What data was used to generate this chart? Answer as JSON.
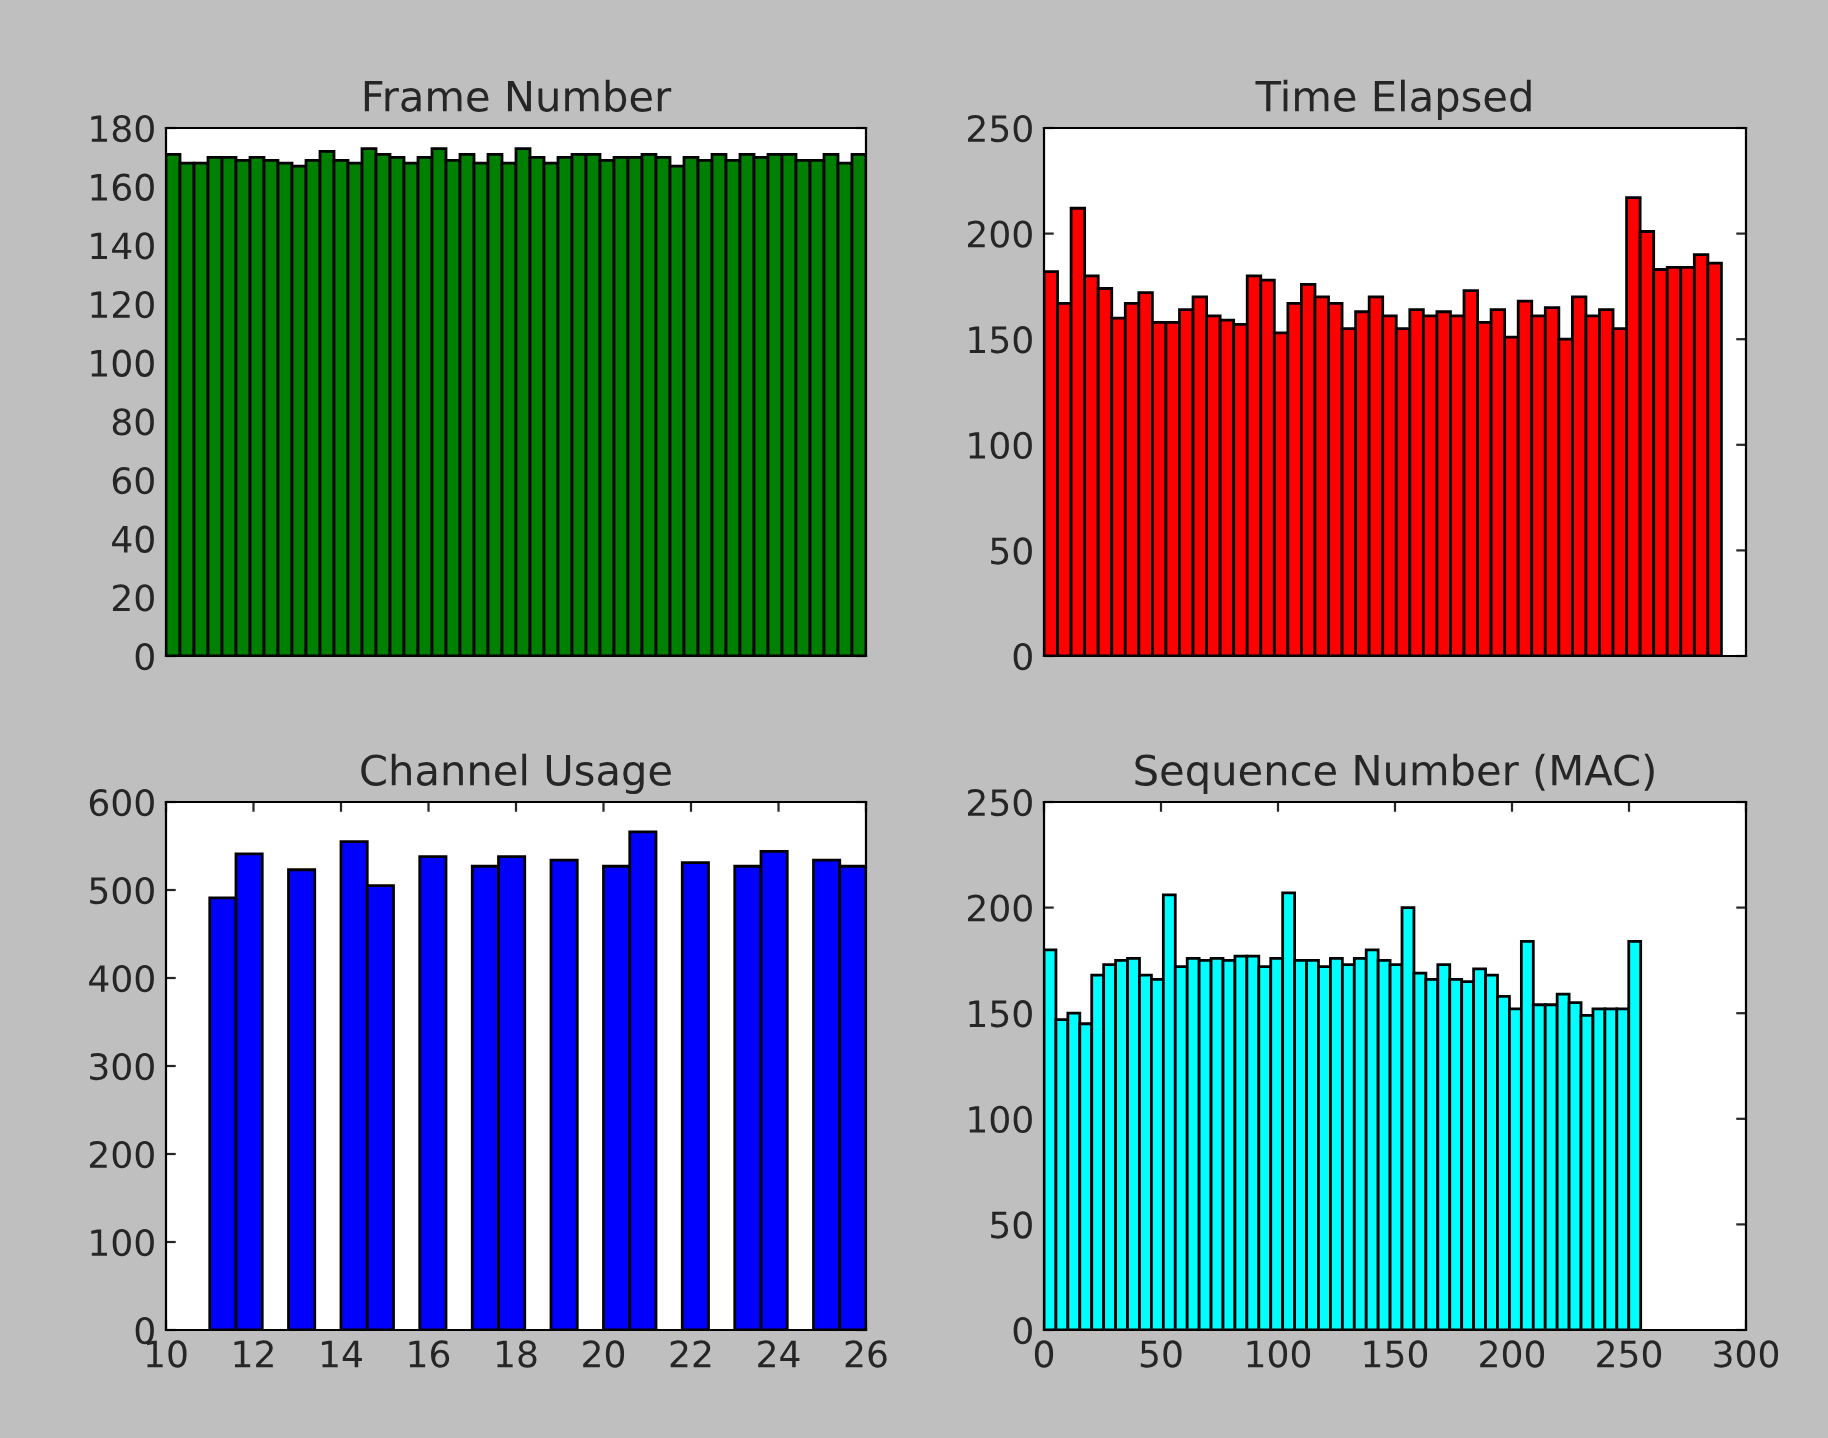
{
  "chart_data": [
    {
      "type": "bar",
      "title": "Frame Number",
      "color": "#008000",
      "tick_labels": "y",
      "categories": [
        null,
        null,
        null,
        null,
        null,
        null,
        null,
        null,
        null,
        null,
        null,
        null,
        null,
        null,
        null,
        null,
        null,
        null,
        null,
        null,
        null,
        null,
        null,
        null,
        null,
        null,
        null,
        null,
        null,
        null,
        null,
        null,
        null,
        null,
        null,
        null,
        null,
        null,
        null,
        null,
        null,
        null,
        null,
        null,
        null,
        null,
        null,
        null,
        null,
        null
      ],
      "values": [
        171,
        168,
        168,
        170,
        170,
        169,
        170,
        169,
        168,
        167,
        169,
        172,
        169,
        168,
        173,
        171,
        170,
        168,
        170,
        173,
        169,
        171,
        168,
        171,
        168,
        173,
        170,
        168,
        170,
        171,
        171,
        169,
        170,
        170,
        171,
        170,
        167,
        170,
        169,
        171,
        169,
        171,
        170,
        171,
        171,
        169,
        169,
        171,
        168,
        171
      ],
      "ylim": [
        0,
        180
      ],
      "yticks": [
        0,
        20,
        40,
        60,
        80,
        100,
        120,
        140,
        160,
        180
      ]
    },
    {
      "type": "histogram",
      "title": "Time Elapsed",
      "color": "#ff0000",
      "tick_labels": "y",
      "bins": [
        0,
        5.79,
        11.58,
        17.37,
        23.16,
        28.95,
        34.74,
        40.53,
        46.32,
        52.11,
        57.9,
        63.69,
        69.48,
        75.27,
        81.06,
        86.85,
        92.64,
        98.43,
        104.22,
        110.01,
        115.8,
        121.59,
        127.38,
        133.17,
        138.96,
        144.75,
        150.54,
        156.33,
        162.12,
        167.91,
        173.7,
        179.49,
        185.28,
        191.07,
        196.86,
        202.65,
        208.44,
        214.23,
        220.02,
        225.81,
        231.6,
        237.39,
        243.18,
        248.97,
        254.76,
        260.55,
        266.34,
        272.13,
        277.92,
        283.71,
        289.5
      ],
      "values": [
        182,
        167,
        212,
        180,
        174,
        160,
        167,
        172,
        158,
        158,
        164,
        170,
        161,
        159,
        157,
        180,
        178,
        153,
        167,
        176,
        170,
        167,
        155,
        163,
        170,
        161,
        155,
        164,
        161,
        163,
        161,
        173,
        158,
        164,
        151,
        168,
        161,
        165,
        150,
        170,
        161,
        164,
        155,
        217,
        201,
        183,
        184,
        184,
        190,
        186
      ],
      "xlim": [
        0,
        300
      ],
      "xticks": [
        0,
        50,
        100,
        150,
        200,
        250,
        300
      ],
      "ylim": [
        0,
        250
      ],
      "yticks": [
        0,
        50,
        100,
        150,
        200,
        250
      ]
    },
    {
      "type": "histogram",
      "title": "Channel Usage",
      "color": "#0000ff",
      "bins": [
        11,
        11.6,
        12.2,
        12.8,
        13.4,
        14,
        14.6,
        15.2,
        15.8,
        16.4,
        17,
        17.6,
        18.2,
        18.8,
        19.4,
        20,
        20.6,
        21.2,
        21.8,
        22.4,
        23,
        23.6,
        24.2,
        24.8,
        25.4,
        26
      ],
      "values": [
        491,
        541,
        0,
        523,
        0,
        555,
        505,
        0,
        538,
        0,
        527,
        538,
        0,
        534,
        0,
        527,
        566,
        0,
        531,
        0,
        527,
        544,
        0,
        534,
        527
      ],
      "xlim": [
        10,
        26
      ],
      "xticks": [
        10,
        12,
        14,
        16,
        18,
        20,
        22,
        24,
        26
      ],
      "ylim": [
        0,
        600
      ],
      "yticks": [
        0,
        100,
        200,
        300,
        400,
        500,
        600
      ]
    },
    {
      "type": "histogram",
      "title": "Sequence Number (MAC)",
      "color": "#00ffff",
      "bins": [
        0,
        5.1,
        10.2,
        15.3,
        20.4,
        25.5,
        30.6,
        35.7,
        40.8,
        45.9,
        51,
        56.1,
        61.2,
        66.3,
        71.4,
        76.5,
        81.6,
        86.7,
        91.8,
        96.9,
        102,
        107.1,
        112.2,
        117.3,
        122.4,
        127.5,
        132.6,
        137.7,
        142.8,
        147.9,
        153,
        158.1,
        163.2,
        168.3,
        173.4,
        178.5,
        183.6,
        188.7,
        193.8,
        198.9,
        204,
        209.1,
        214.2,
        219.3,
        224.4,
        229.5,
        234.6,
        239.7,
        244.8,
        249.9,
        255
      ],
      "values": [
        180,
        147,
        150,
        145,
        168,
        173,
        175,
        176,
        168,
        166,
        206,
        172,
        176,
        175,
        176,
        175,
        177,
        177,
        172,
        176,
        207,
        175,
        175,
        172,
        176,
        173,
        176,
        180,
        175,
        173,
        200,
        169,
        166,
        173,
        166,
        165,
        171,
        168,
        158,
        152,
        184,
        154,
        154,
        159,
        155,
        149,
        152,
        152,
        152,
        184
      ],
      "xlim": [
        0,
        300
      ],
      "xticks": [
        0,
        50,
        100,
        150,
        200,
        250,
        300
      ],
      "ylim": [
        0,
        250
      ],
      "yticks": [
        0,
        50,
        100,
        150,
        200,
        250
      ]
    }
  ]
}
